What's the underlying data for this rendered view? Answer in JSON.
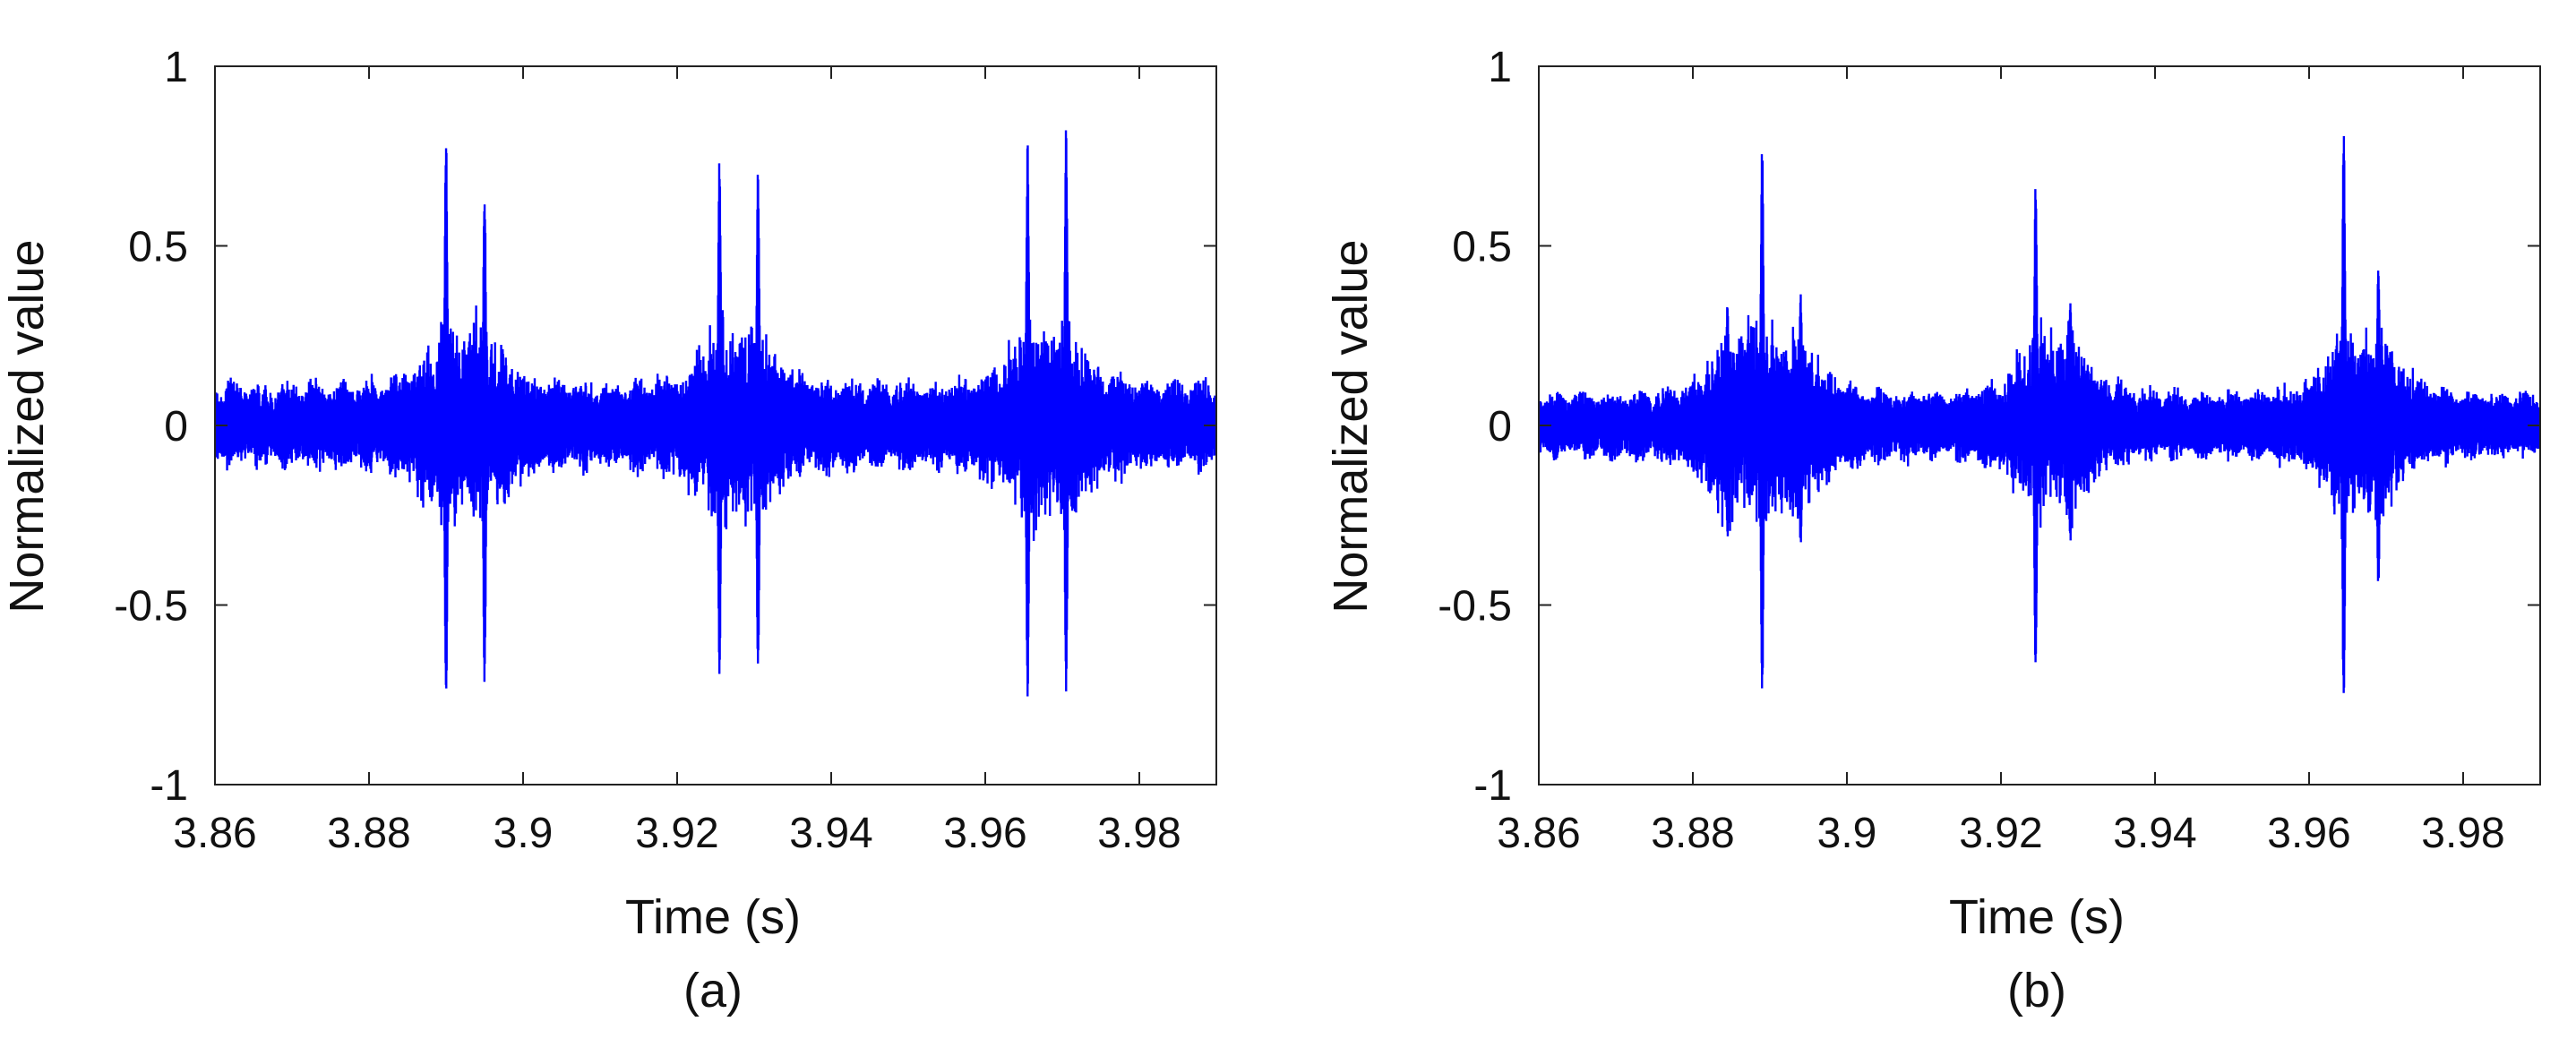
{
  "chart_data": [
    {
      "type": "line",
      "caption": "(a)",
      "xlabel": "Time (s)",
      "ylabel": "Normalized value",
      "xlim": [
        3.86,
        3.99
      ],
      "ylim": [
        -1,
        1
      ],
      "xticks": [
        3.86,
        3.88,
        3.9,
        3.92,
        3.94,
        3.96,
        3.98
      ],
      "xtick_labels": [
        "3.86",
        "3.88",
        "3.9",
        "3.92",
        "3.94",
        "3.96",
        "3.98"
      ],
      "yticks": [
        1,
        0.5,
        0,
        -0.5,
        -1
      ],
      "ytick_labels": [
        "1",
        "0.5",
        "0",
        "-0.5",
        "-1"
      ],
      "grid": false,
      "series_color": "#0000ff",
      "baseline_noise": 0.13,
      "events": [
        {
          "t": 3.89,
          "peak_pos": 0.83,
          "peak_neg": -0.8
        },
        {
          "t": 3.895,
          "peak_pos": 0.68,
          "peak_neg": -0.73
        },
        {
          "t": 3.9255,
          "peak_pos": 0.76,
          "peak_neg": -0.72
        },
        {
          "t": 3.9305,
          "peak_pos": 0.72,
          "peak_neg": -0.7
        },
        {
          "t": 3.9655,
          "peak_pos": 0.79,
          "peak_neg": -0.79
        },
        {
          "t": 3.9705,
          "peak_pos": 0.85,
          "peak_neg": -0.76
        }
      ]
    },
    {
      "type": "line",
      "caption": "(b)",
      "xlabel": "Time (s)",
      "ylabel": "Normalized value",
      "xlim": [
        3.86,
        3.99
      ],
      "ylim": [
        -1,
        1
      ],
      "xticks": [
        3.86,
        3.88,
        3.9,
        3.92,
        3.94,
        3.96,
        3.98
      ],
      "xtick_labels": [
        "3.86",
        "3.88",
        "3.9",
        "3.92",
        "3.94",
        "3.96",
        "3.98"
      ],
      "yticks": [
        1,
        0.5,
        0,
        -0.5,
        -1
      ],
      "ytick_labels": [
        "1",
        "0.5",
        "0",
        "-0.5",
        "-1"
      ],
      "grid": false,
      "series_color": "#0000ff",
      "baseline_noise": 0.1,
      "events": [
        {
          "t": 3.8845,
          "peak_pos": 0.35,
          "peak_neg": -0.32
        },
        {
          "t": 3.889,
          "peak_pos": 0.8,
          "peak_neg": -0.78
        },
        {
          "t": 3.894,
          "peak_pos": 0.37,
          "peak_neg": -0.35
        },
        {
          "t": 3.9245,
          "peak_pos": 0.68,
          "peak_neg": -0.7
        },
        {
          "t": 3.929,
          "peak_pos": 0.36,
          "peak_neg": -0.33
        },
        {
          "t": 3.9645,
          "peak_pos": 0.83,
          "peak_neg": -0.82
        },
        {
          "t": 3.969,
          "peak_pos": 0.45,
          "peak_neg": -0.47
        }
      ]
    }
  ]
}
